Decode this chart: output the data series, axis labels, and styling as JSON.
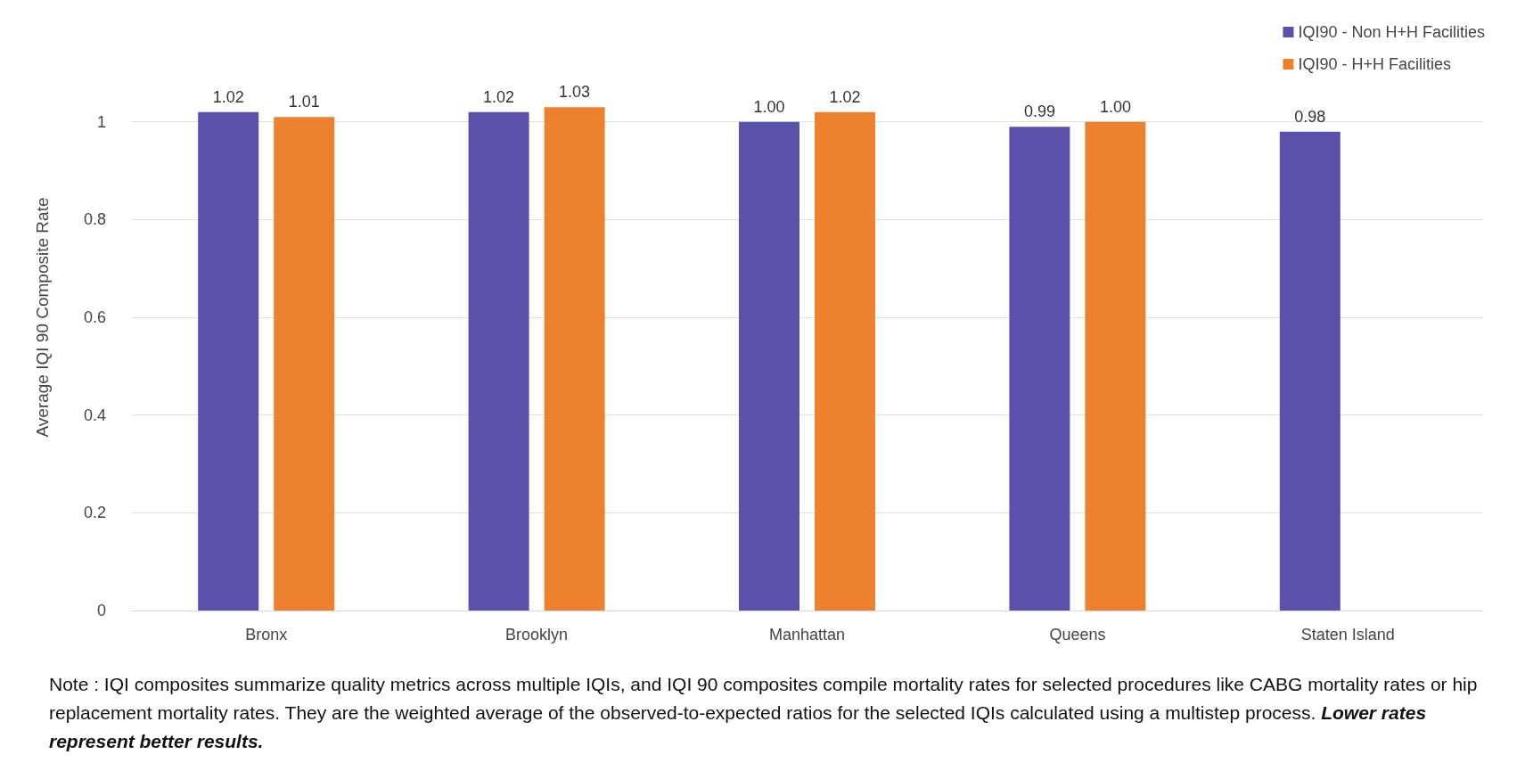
{
  "chart_data": {
    "type": "bar",
    "ylabel": "Average IQI 90 Composite Rate",
    "categories": [
      "Bronx",
      "Brooklyn",
      "Manhattan",
      "Queens",
      "Staten Island"
    ],
    "series": [
      {
        "name": "IQI90 - Non H+H Facilities",
        "color": "#5a52a8",
        "values": [
          1.02,
          1.02,
          1.0,
          0.99,
          0.98
        ],
        "value_labels": [
          "1.02",
          "1.02",
          "1.00",
          "0.99",
          "0.98"
        ]
      },
      {
        "name": "IQI90 - H+H Facilities",
        "color": "#ec822f",
        "values": [
          1.01,
          1.03,
          1.02,
          1.0,
          null
        ],
        "value_labels": [
          "1.01",
          "1.03",
          "1.02",
          "1.00",
          null
        ]
      }
    ],
    "ylim": [
      0,
      1.2
    ],
    "yticks": [
      0,
      0.2,
      0.4,
      0.6,
      0.8,
      1
    ],
    "grid": "y",
    "legend": "top right",
    "annotations": [
      "Note : IQI composites summarize quality metrics across multiple IQIs, and IQI 90 composites compile mortality rates for selected procedures like CABG mortality rates or hip replacement mortality rates. They are the weighted average of the observed-to-expected ratios for the selected IQIs calculated using a multistep process.",
      "Lower rates represent better results."
    ]
  }
}
